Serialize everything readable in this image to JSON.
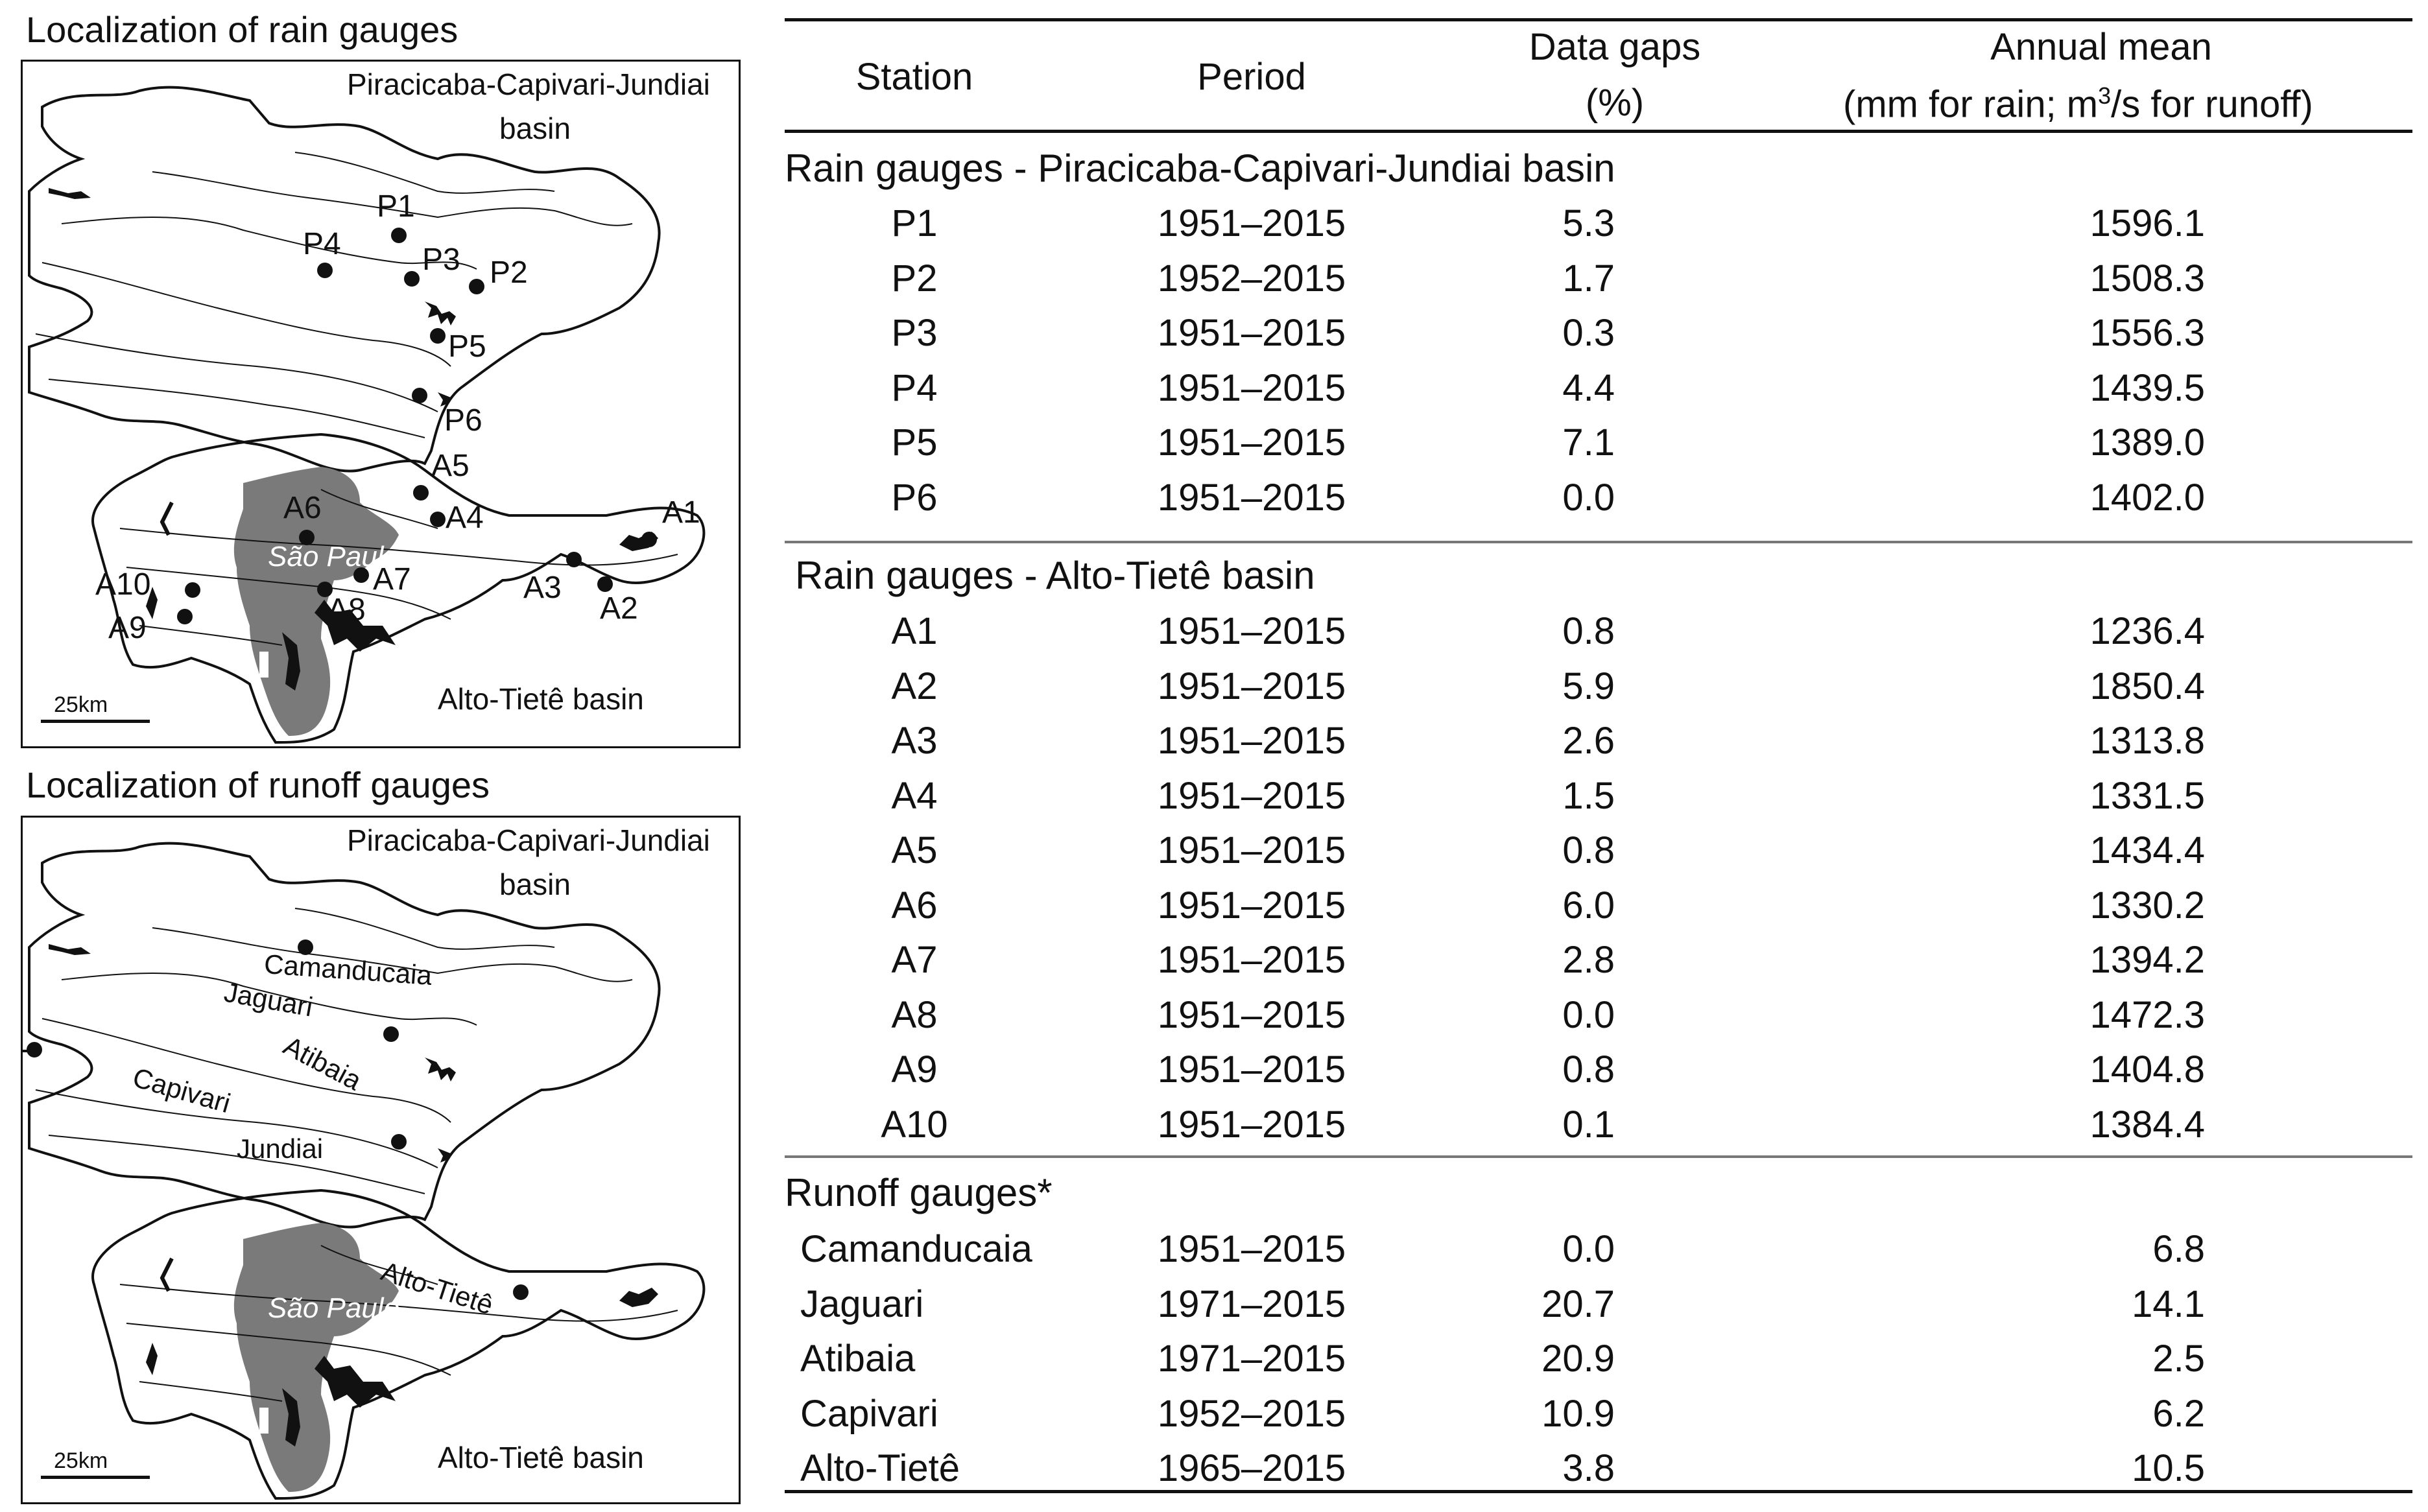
{
  "rain_map": {
    "title": "Localization of rain gauges",
    "basin_top_label_line1": "Piracicaba-Capivari-Jundiai",
    "basin_top_label_line2": "basin",
    "basin_bottom_label": "Alto-Tietê basin",
    "city_label": "São Paulo",
    "scale_label": "25km",
    "gauges": [
      "P1",
      "P2",
      "P3",
      "P4",
      "P5",
      "P6",
      "A1",
      "A2",
      "A3",
      "A4",
      "A5",
      "A6",
      "A7",
      "A8",
      "A9",
      "A10"
    ]
  },
  "runoff_map": {
    "title": "Localization of runoff gauges",
    "basin_top_label_line1": "Piracicaba-Capivari-Jundiai",
    "basin_top_label_line2": "basin",
    "basin_bottom_label": "Alto-Tietê basin",
    "city_label": "São Paulo",
    "scale_label": "25km",
    "rivers": [
      "Camanducaia",
      "Jaguari",
      "Atibaia",
      "Capivari",
      "Jundiai",
      "Alto-Tietê"
    ]
  },
  "table": {
    "headers": {
      "station": "Station",
      "period": "Period",
      "gaps_line1": "Data gaps",
      "gaps_line2": "(%)",
      "mean_line1": "Annual mean",
      "mean_line2_a": "(mm for rain; m",
      "mean_line2_sup": "3",
      "mean_line2_b": "/s for runoff)"
    },
    "sections": [
      {
        "title": "Rain gauges - Piracicaba-Capivari-Jundiai basin",
        "rows": [
          {
            "station": "P1",
            "period": "1951–2015",
            "gaps": "5.3",
            "mean": "1596.1"
          },
          {
            "station": "P2",
            "period": "1952–2015",
            "gaps": "1.7",
            "mean": "1508.3"
          },
          {
            "station": "P3",
            "period": "1951–2015",
            "gaps": "0.3",
            "mean": "1556.3"
          },
          {
            "station": "P4",
            "period": "1951–2015",
            "gaps": "4.4",
            "mean": "1439.5"
          },
          {
            "station": "P5",
            "period": "1951–2015",
            "gaps": "7.1",
            "mean": "1389.0"
          },
          {
            "station": "P6",
            "period": "1951–2015",
            "gaps": "0.0",
            "mean": "1402.0"
          }
        ]
      },
      {
        "title": "Rain gauges - Alto-Tietê basin",
        "rows": [
          {
            "station": "A1",
            "period": "1951–2015",
            "gaps": "0.8",
            "mean": "1236.4"
          },
          {
            "station": "A2",
            "period": "1951–2015",
            "gaps": "5.9",
            "mean": "1850.4"
          },
          {
            "station": "A3",
            "period": "1951–2015",
            "gaps": "2.6",
            "mean": "1313.8"
          },
          {
            "station": "A4",
            "period": "1951–2015",
            "gaps": "1.5",
            "mean": "1331.5"
          },
          {
            "station": "A5",
            "period": "1951–2015",
            "gaps": "0.8",
            "mean": "1434.4"
          },
          {
            "station": "A6",
            "period": "1951–2015",
            "gaps": "6.0",
            "mean": "1330.2"
          },
          {
            "station": "A7",
            "period": "1951–2015",
            "gaps": "2.8",
            "mean": "1394.2"
          },
          {
            "station": "A8",
            "period": "1951–2015",
            "gaps": "0.0",
            "mean": "1472.3"
          },
          {
            "station": "A9",
            "period": "1951–2015",
            "gaps": "0.8",
            "mean": "1404.8"
          },
          {
            "station": "A10",
            "period": "1951–2015",
            "gaps": "0.1",
            "mean": "1384.4"
          }
        ]
      },
      {
        "title": "Runoff gauges*",
        "rows": [
          {
            "station": "Camanducaia",
            "period": "1951–2015",
            "gaps": "0.0",
            "mean": "6.8"
          },
          {
            "station": "Jaguari",
            "period": "1971–2015",
            "gaps": "20.7",
            "mean": "14.1"
          },
          {
            "station": "Atibaia",
            "period": "1971–2015",
            "gaps": "20.9",
            "mean": "2.5"
          },
          {
            "station": "Capivari",
            "period": "1952–2015",
            "gaps": "10.9",
            "mean": "6.2"
          },
          {
            "station": "Alto-Tietê",
            "period": "1965–2015",
            "gaps": "3.8",
            "mean": "10.5"
          }
        ]
      }
    ]
  }
}
